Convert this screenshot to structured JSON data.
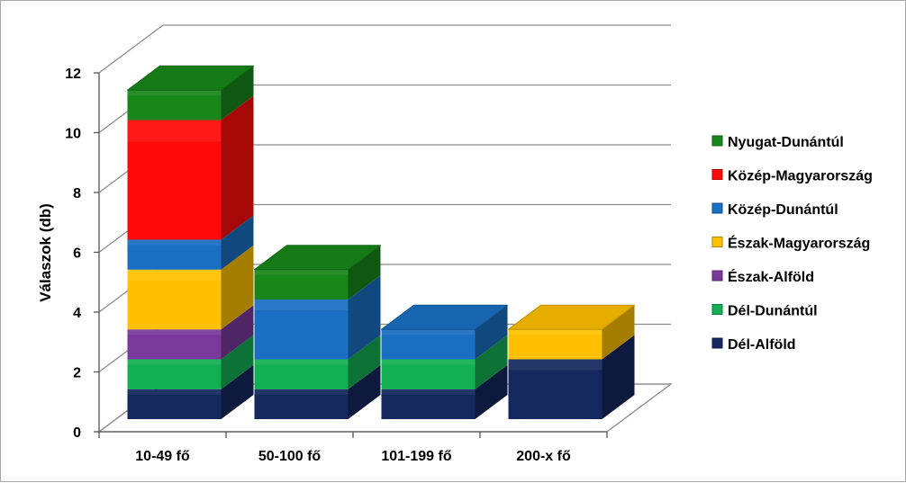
{
  "chart_data": {
    "type": "bar",
    "stacked": true,
    "three_d": true,
    "categories": [
      "10-49 fő",
      "50-100 fő",
      "101-199 fő",
      "200-x fő"
    ],
    "series": [
      {
        "name": "Dél-Alföld",
        "color": "#14285e",
        "values": [
          1,
          1,
          1,
          2
        ]
      },
      {
        "name": "Dél-Dunántúl",
        "color": "#12b052",
        "values": [
          1,
          1,
          1,
          0
        ]
      },
      {
        "name": "Észak-Alföld",
        "color": "#7a3a9c",
        "values": [
          1,
          0,
          0,
          0
        ]
      },
      {
        "name": "Észak-Magyarország",
        "color": "#fec000",
        "values": [
          2,
          0,
          0,
          1
        ]
      },
      {
        "name": "Közép-Dunántúl",
        "color": "#1a6fc2",
        "values": [
          1,
          2,
          1,
          0
        ]
      },
      {
        "name": "Közép-Magyarország",
        "color": "#ff0a0a",
        "values": [
          4,
          0,
          0,
          0
        ]
      },
      {
        "name": "Nyugat-Dunántúl",
        "color": "#18861b",
        "values": [
          1,
          1,
          0,
          0
        ]
      }
    ],
    "ylabel": "Válaszok (db)",
    "ylim": [
      0,
      12
    ],
    "yticks": [
      0,
      2,
      4,
      6,
      8,
      10,
      12
    ],
    "grid": true,
    "legend_position": "right",
    "legend_order": [
      "Nyugat-Dunántúl",
      "Közép-Magyarország",
      "Közép-Dunántúl",
      "Észak-Magyarország",
      "Észak-Alföld",
      "Dél-Dunántúl",
      "Dél-Alföld"
    ]
  }
}
